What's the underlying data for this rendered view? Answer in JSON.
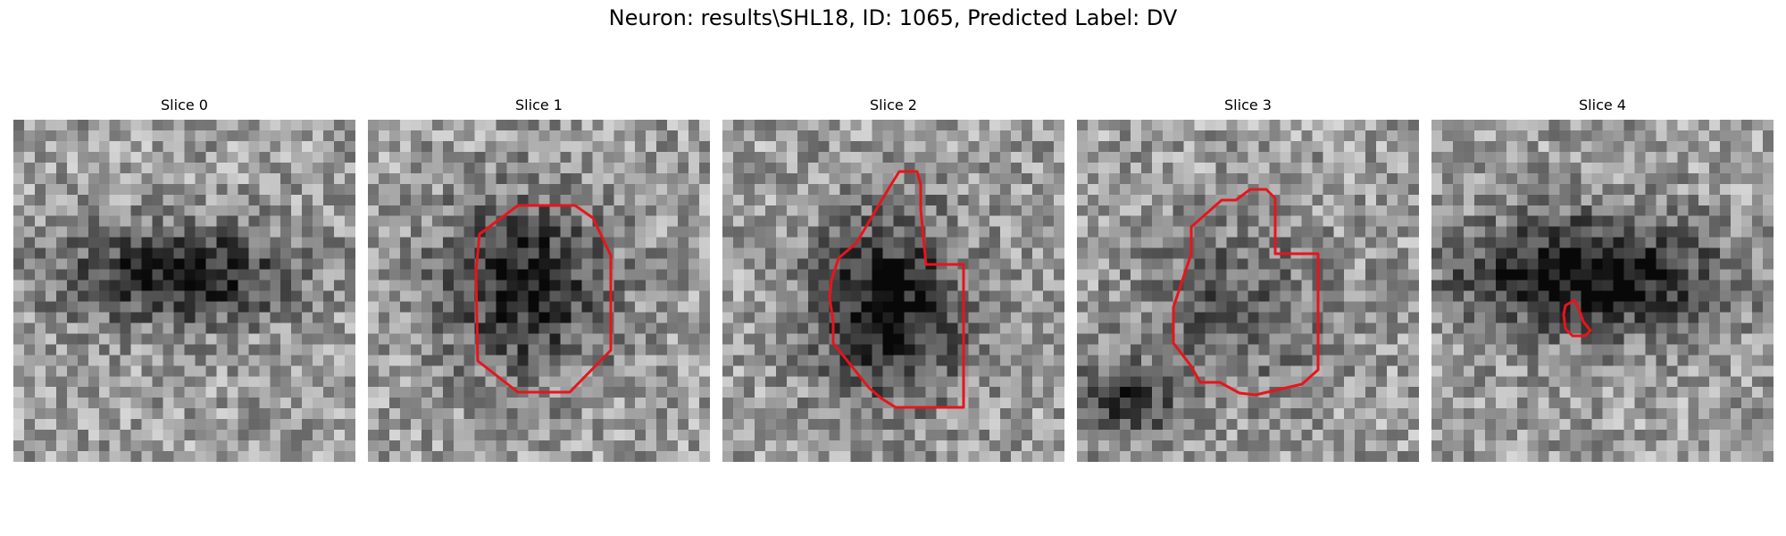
{
  "figure": {
    "title": "Neuron: results\\SHL18, ID: 1065, Predicted Label: DV"
  },
  "slices": [
    {
      "title": "Slice 0",
      "has_contour": false
    },
    {
      "title": "Slice 1",
      "has_contour": true
    },
    {
      "title": "Slice 2",
      "has_contour": true
    },
    {
      "title": "Slice 3",
      "has_contour": true
    },
    {
      "title": "Slice 4",
      "has_contour": true
    }
  ],
  "colors": {
    "contour": "#e8141c",
    "background": "#ffffff"
  }
}
